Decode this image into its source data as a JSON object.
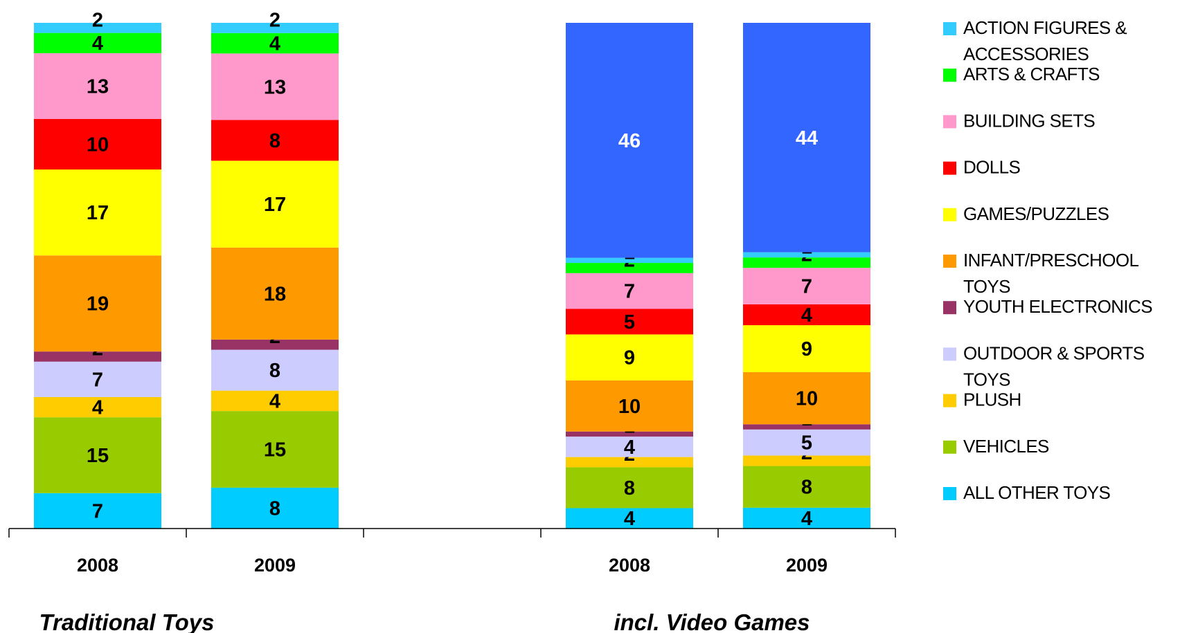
{
  "chart_data": {
    "type": "bar",
    "stacked": true,
    "percent": true,
    "grid": false,
    "legend_position": "right",
    "groups": [
      {
        "name": "Traditional Toys",
        "categories": [
          "2008",
          "2009"
        ]
      },
      {
        "name": "incl. Video Games",
        "categories": [
          "2008",
          "2009"
        ]
      }
    ],
    "categories": [
      "2008",
      "2009",
      "",
      "2008",
      "2009"
    ],
    "series": [
      {
        "name": "ALL OTHER TOYS",
        "legend": true,
        "color": "#00ccff",
        "label_color": "#000000",
        "values": [
          7,
          8,
          null,
          4,
          4
        ]
      },
      {
        "name": "VEHICLES",
        "legend": true,
        "color": "#99cc00",
        "label_color": "#000000",
        "values": [
          15,
          15,
          null,
          8,
          8
        ]
      },
      {
        "name": "PLUSH",
        "legend": true,
        "color": "#ffcc00",
        "label_color": "#000000",
        "values": [
          4,
          4,
          null,
          2,
          2
        ]
      },
      {
        "name": "OUTDOOR & SPORTS TOYS",
        "legend": true,
        "color": "#ccccff",
        "label_color": "#000000",
        "values": [
          7,
          8,
          null,
          4,
          5
        ]
      },
      {
        "name": "YOUTH ELECTRONICS",
        "legend": true,
        "color": "#993366",
        "label_color": "#000000",
        "values": [
          2,
          2,
          null,
          1,
          1
        ]
      },
      {
        "name": "INFANT/PRESCHOOL TOYS",
        "legend": true,
        "color": "#ff9900",
        "label_color": "#000000",
        "values": [
          19,
          18,
          null,
          10,
          10
        ]
      },
      {
        "name": "GAMES/PUZZLES",
        "legend": true,
        "color": "#ffff00",
        "label_color": "#000000",
        "values": [
          17,
          17,
          null,
          9,
          9
        ]
      },
      {
        "name": "DOLLS",
        "legend": true,
        "color": "#ff0000",
        "label_color": "#000000",
        "values": [
          10,
          8,
          null,
          5,
          4
        ]
      },
      {
        "name": "BUILDING SETS",
        "legend": true,
        "color": "#ff99cc",
        "label_color": "#000000",
        "values": [
          13,
          13,
          null,
          7,
          7
        ]
      },
      {
        "name": "ARTS & CRAFTS",
        "legend": true,
        "color": "#00ff00",
        "label_color": "#000000",
        "values": [
          4,
          4,
          null,
          2,
          2
        ]
      },
      {
        "name": "ACTION FIGURES & ACCESSORIES",
        "legend": true,
        "color": "#33ccff",
        "label_color": "#000000",
        "values": [
          2,
          2,
          null,
          1,
          1
        ]
      },
      {
        "name": "",
        "legend": false,
        "color": "#3366ff",
        "label_color": "#ffffff",
        "values": [
          null,
          null,
          null,
          46,
          44
        ]
      }
    ],
    "legend_order": [
      "ACTION FIGURES & ACCESSORIES",
      "ARTS & CRAFTS",
      "BUILDING SETS",
      "DOLLS",
      "GAMES/PUZZLES",
      "INFANT/PRESCHOOL TOYS",
      "YOUTH ELECTRONICS",
      "OUTDOOR & SPORTS TOYS",
      "PLUSH",
      "VEHICLES",
      "ALL OTHER TOYS"
    ],
    "xlabel": "",
    "ylabel": ""
  }
}
